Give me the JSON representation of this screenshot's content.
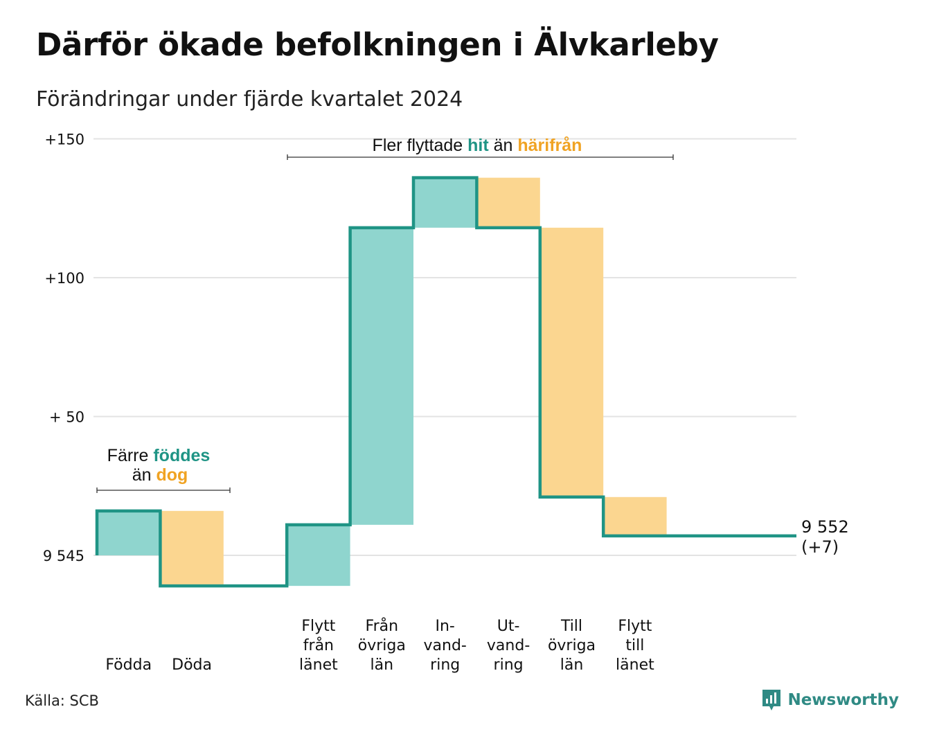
{
  "title": "Därför ökade befolkningen i Älvkarleby",
  "subtitle": "Förändringar under fjärde kvartalet 2024",
  "source": "Källa: SCB",
  "brand": "Newsworthy",
  "colors": {
    "increase": "#8fd5ce",
    "decrease": "#fbd690",
    "line": "#1f9485",
    "accent_teal": "#1f9485",
    "accent_orange": "#f0a323",
    "grid": "#e3e3e3"
  },
  "chart_data": {
    "type": "waterfall",
    "baseline": 9545,
    "ylim": [
      -11,
      152
    ],
    "yticks": [
      {
        "value": 0,
        "label": "9 545"
      },
      {
        "value": 50,
        "label": "+ 50"
      },
      {
        "value": 100,
        "label": "+100"
      },
      {
        "value": 150,
        "label": "+150"
      }
    ],
    "steps": [
      {
        "category": [
          "Födda"
        ],
        "change": 16,
        "kind": "increase"
      },
      {
        "category": [
          "Döda"
        ],
        "change": -27,
        "kind": "decrease"
      },
      {
        "category": [],
        "change": 0,
        "kind": "none"
      },
      {
        "category": [
          "Flytt",
          "från",
          "länet"
        ],
        "change": 22,
        "kind": "increase"
      },
      {
        "category": [
          "Från",
          "övriga",
          "län"
        ],
        "change": 107,
        "kind": "increase"
      },
      {
        "category": [
          "In-",
          "vand-",
          "ring"
        ],
        "change": 18,
        "kind": "increase"
      },
      {
        "category": [
          "Ut-",
          "vand-",
          "ring"
        ],
        "change": -18,
        "kind": "decrease"
      },
      {
        "category": [
          "Till",
          "övriga",
          "län"
        ],
        "change": -97,
        "kind": "decrease"
      },
      {
        "category": [
          "Flytt",
          "till",
          "länet"
        ],
        "change": -14,
        "kind": "decrease"
      }
    ],
    "end_label": [
      "9 552",
      "(+7)"
    ],
    "annotations": {
      "births": {
        "line1": [
          "Färre ",
          "föddes"
        ],
        "line2": [
          "än ",
          "dog"
        ]
      },
      "moves": {
        "parts": [
          "Fler flyttade ",
          "hit",
          " än ",
          "härifrån"
        ]
      }
    }
  }
}
